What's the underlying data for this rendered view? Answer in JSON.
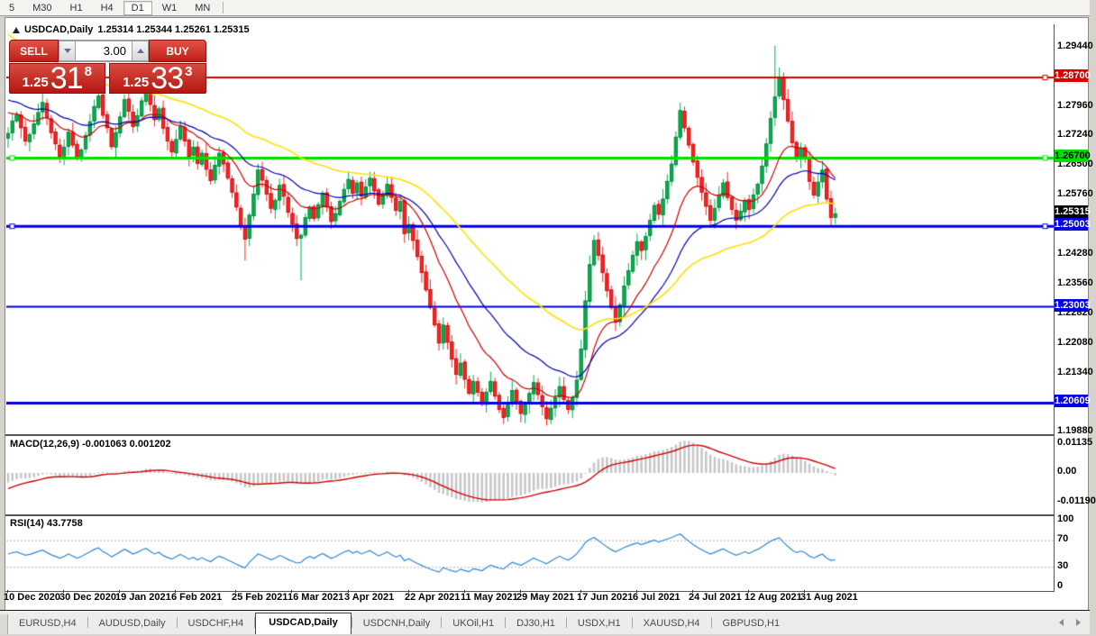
{
  "toolbar": {
    "timeframes": [
      {
        "label": "5",
        "active": false
      },
      {
        "label": "M30",
        "active": false
      },
      {
        "label": "H1",
        "active": false
      },
      {
        "label": "H4",
        "active": false
      },
      {
        "label": "D1",
        "active": true
      },
      {
        "label": "W1",
        "active": false
      },
      {
        "label": "MN",
        "active": false
      }
    ]
  },
  "chart_header": {
    "symbol": "USDCAD,Daily",
    "ohlc": "1.25314 1.25344 1.25261 1.25315"
  },
  "order_panel": {
    "sell_label": "SELL",
    "buy_label": "BUY",
    "volume": "3.00",
    "sell_price_main": "1.25",
    "sell_price_big": "31",
    "sell_price_sup": "8",
    "buy_price_main": "1.25",
    "buy_price_big": "33",
    "buy_price_sup": "3"
  },
  "price_axis": {
    "ticks": [
      {
        "text": "1.29440",
        "price": 1.2944
      },
      {
        "text": "1.27960",
        "price": 1.2796
      },
      {
        "text": "1.27240",
        "price": 1.2724
      },
      {
        "text": "1.26500",
        "price": 1.265
      },
      {
        "text": "1.25760",
        "price": 1.2576
      },
      {
        "text": "1.24280",
        "price": 1.2428
      },
      {
        "text": "1.23560",
        "price": 1.2356
      },
      {
        "text": "1.22820",
        "price": 1.2282
      },
      {
        "text": "1.22080",
        "price": 1.2208
      },
      {
        "text": "1.21340",
        "price": 1.2134
      },
      {
        "text": "1.19880",
        "price": 1.1988
      }
    ],
    "badges": [
      {
        "text": "1.28700",
        "price": 1.287,
        "bg": "#dd0000",
        "fg": "#ffffff"
      },
      {
        "text": "1.26700",
        "price": 1.267,
        "bg": "#00e000",
        "fg": "#000000"
      },
      {
        "text": "1.25315",
        "price": 1.25315,
        "bg": "#000000",
        "fg": "#ffffff"
      },
      {
        "text": "1.25003",
        "price": 1.25003,
        "bg": "#0000e0",
        "fg": "#ffffff"
      },
      {
        "text": "1.23003",
        "price": 1.23003,
        "bg": "#0000e0",
        "fg": "#ffffff"
      },
      {
        "text": "1.20609",
        "price": 1.20609,
        "bg": "#0000e0",
        "fg": "#ffffff"
      }
    ]
  },
  "macd_panel": {
    "label": "MACD(12,26,9) -0.001063 0.001202",
    "axis": [
      {
        "text": "0.01135",
        "value": 0.01135
      },
      {
        "text": "0.00",
        "value": 0.0
      },
      {
        "text": "-0.01190",
        "value": -0.0119
      }
    ]
  },
  "rsi_panel": {
    "label": "RSI(14) 43.7758",
    "axis": [
      {
        "text": "100",
        "value": 100
      },
      {
        "text": "70",
        "value": 70
      },
      {
        "text": "30",
        "value": 30
      },
      {
        "text": "0",
        "value": 0
      }
    ]
  },
  "tabs": [
    {
      "label": "EURUSD,H4",
      "active": false
    },
    {
      "label": "AUDUSD,Daily",
      "active": false
    },
    {
      "label": "USDCHF,H4",
      "active": false
    },
    {
      "label": "USDCAD,Daily",
      "active": true
    },
    {
      "label": "USDCNH,Daily",
      "active": false
    },
    {
      "label": "UKOil,H1",
      "active": false
    },
    {
      "label": "DJ30,H1",
      "active": false
    },
    {
      "label": "USDX,H1",
      "active": false
    },
    {
      "label": "XAUUSD,H4",
      "active": false
    },
    {
      "label": "GBPUSD,H1",
      "active": false
    }
  ],
  "chart_data": {
    "type": "candlestick",
    "symbol": "USDCAD",
    "timeframe": "Daily",
    "ylim": [
      1.19835,
      1.30022
    ],
    "grid": false,
    "closes": [
      1.2731,
      1.2762,
      1.2778,
      1.2745,
      1.2712,
      1.2728,
      1.2755,
      1.2783,
      1.2808,
      1.277,
      1.2733,
      1.2705,
      1.2674,
      1.2697,
      1.2734,
      1.2702,
      1.2668,
      1.269,
      1.2726,
      1.276,
      1.2798,
      1.2824,
      1.2776,
      1.2745,
      1.2698,
      1.2733,
      1.2772,
      1.2815,
      1.2786,
      1.2748,
      1.2775,
      1.2812,
      1.284,
      1.2803,
      1.2765,
      1.2792,
      1.2744,
      1.2712,
      1.2685,
      1.2716,
      1.2748,
      1.2712,
      1.2674,
      1.2697,
      1.2656,
      1.2682,
      1.2642,
      1.2614,
      1.2652,
      1.2682,
      1.2655,
      1.262,
      1.2585,
      1.2548,
      1.2502,
      1.2468,
      1.2528,
      1.258,
      1.264,
      1.2615,
      1.258,
      1.2545,
      1.2565,
      1.2602,
      1.2575,
      1.2535,
      1.2505,
      1.247,
      1.2478,
      1.2522,
      1.2548,
      1.252,
      1.2554,
      1.2582,
      1.2548,
      1.2512,
      1.2532,
      1.2562,
      1.2592,
      1.2617,
      1.2582,
      1.2608,
      1.2575,
      1.2598,
      1.262,
      1.2588,
      1.2555,
      1.2578,
      1.2605,
      1.2572,
      1.254,
      1.2562,
      1.2482,
      1.2505,
      1.2465,
      1.2425,
      1.2385,
      1.2342,
      1.2298,
      1.2255,
      1.221,
      1.2255,
      1.2212,
      1.217,
      1.2132,
      1.216,
      1.212,
      1.2085,
      1.2115,
      1.2088,
      1.2058,
      1.2088,
      1.2115,
      1.2078,
      1.2045,
      1.2025,
      1.206,
      1.2092,
      1.2065,
      1.2035,
      1.2058,
      1.2085,
      1.2112,
      1.2082,
      1.2052,
      1.2022,
      1.2048,
      1.2075,
      1.2102,
      1.207,
      1.2045,
      1.2075,
      1.2118,
      1.2195,
      1.2315,
      1.2405,
      1.2465,
      1.2428,
      1.2385,
      1.234,
      1.2298,
      1.2262,
      1.2305,
      1.2352,
      1.239,
      1.2428,
      1.2462,
      1.244,
      1.2475,
      1.2515,
      1.2552,
      1.253,
      1.2568,
      1.2612,
      1.2655,
      1.2722,
      1.2788,
      1.2745,
      1.2702,
      1.266,
      1.2622,
      1.2585,
      1.255,
      1.2515,
      1.2545,
      1.2578,
      1.2608,
      1.2572,
      1.2542,
      1.2515,
      1.2538,
      1.2565,
      1.2542,
      1.2578,
      1.2605,
      1.265,
      1.2705,
      1.2768,
      1.2822,
      1.287,
      1.2815,
      1.2762,
      1.2708,
      1.2668,
      1.2695,
      1.2672,
      1.2612,
      1.2578,
      1.261,
      1.264,
      1.2568,
      1.2522,
      1.25315
    ],
    "wick_overrides": {
      "55": {
        "l": 1.2415
      },
      "68": {
        "l": 1.2366
      },
      "115": {
        "l": 1.2009
      },
      "125": {
        "l": 1.2005
      },
      "156": {
        "h": 1.2807
      },
      "178": {
        "h": 1.2949
      },
      "179": {
        "h": 1.2895
      }
    },
    "levels": [
      {
        "price": 1.287,
        "color": "#dd0000",
        "width": 2,
        "marker": true
      },
      {
        "price": 1.267,
        "color": "#00e000",
        "width": 3,
        "marker": true
      },
      {
        "price": 1.25003,
        "color": "#0000e0",
        "width": 3,
        "marker": true
      },
      {
        "price": 1.23003,
        "color": "#0000e0",
        "width": 2,
        "marker": false
      },
      {
        "price": 1.20609,
        "color": "#0000e0",
        "width": 3,
        "marker": false
      }
    ],
    "moving_averages": [
      {
        "period": 15,
        "color": "#d00000",
        "seed": 1.279,
        "width": 1.2
      },
      {
        "period": 30,
        "color": "#0000b8",
        "seed": 1.282,
        "width": 1.2
      },
      {
        "period": 60,
        "color": "#ffe100",
        "seed": 1.2985,
        "width": 1.6
      }
    ],
    "macd": {
      "fast": 12,
      "slow": 26,
      "signal": 9,
      "hist_color": "#c6c6c6",
      "signal_color": "#d00000",
      "scale": 0.0003577
    },
    "rsi": {
      "period": 14,
      "color": "#2e86d4",
      "levels": [
        70,
        30
      ]
    },
    "candle_up_color": "#00b04e",
    "candle_up_edge": "#007a32",
    "candle_down_color": "#ff2020",
    "candle_down_edge": "#c40000",
    "dates": [
      {
        "label": "10 Dec 2020",
        "i": 0
      },
      {
        "label": "30 Dec 2020",
        "i": 13
      },
      {
        "label": "19 Jan 2021",
        "i": 26
      },
      {
        "label": "6 Feb 2021",
        "i": 39
      },
      {
        "label": "25 Feb 2021",
        "i": 53
      },
      {
        "label": "16 Mar 2021",
        "i": 66
      },
      {
        "label": "3 Apr 2021",
        "i": 79
      },
      {
        "label": "22 Apr 2021",
        "i": 93
      },
      {
        "label": "11 May 2021",
        "i": 106
      },
      {
        "label": "29 May 2021",
        "i": 119
      },
      {
        "label": "17 Jun 2021",
        "i": 133
      },
      {
        "label": "6 Jul 2021",
        "i": 146
      },
      {
        "label": "24 Jul 2021",
        "i": 159
      },
      {
        "label": "12 Aug 2021",
        "i": 172
      },
      {
        "label": "31 Aug 2021",
        "i": 185
      }
    ]
  }
}
